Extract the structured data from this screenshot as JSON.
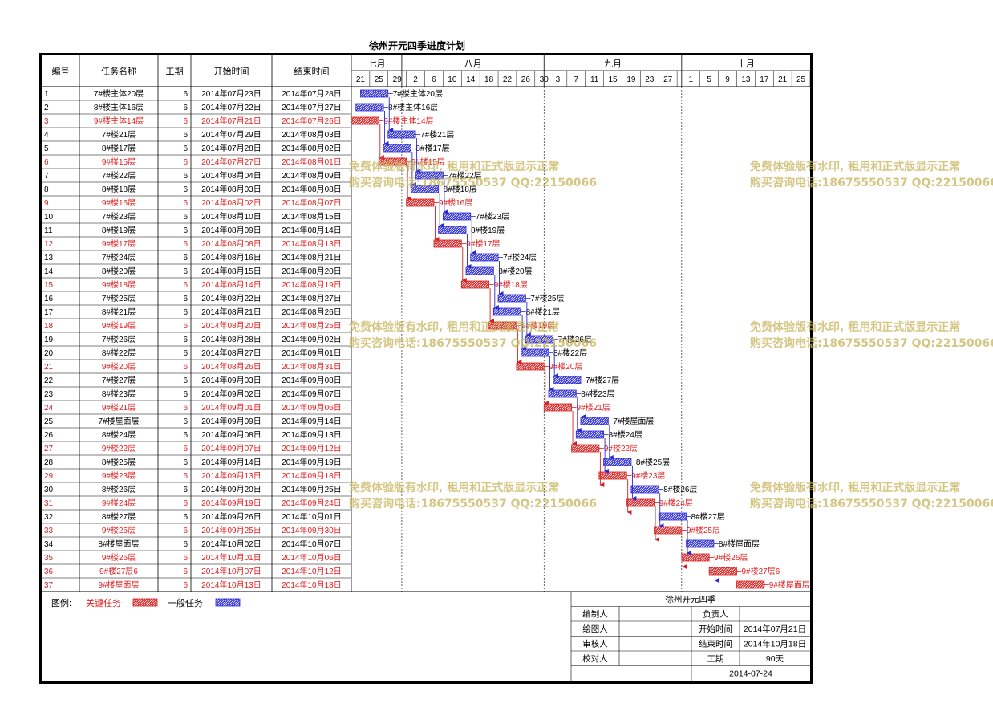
{
  "title": "徐州开元四季进度计划",
  "headers": {
    "id": "编号",
    "name": "任务名称",
    "dur": "工期",
    "start": "开始时间",
    "end": "结束时间"
  },
  "months": [
    {
      "label": "七月",
      "ticks": [
        "21",
        "25",
        "29"
      ]
    },
    {
      "label": "八月",
      "ticks": [
        "2",
        "6",
        "10",
        "14",
        "18",
        "22",
        "26",
        "30"
      ]
    },
    {
      "label": "九月",
      "ticks": [
        "3",
        "7",
        "11",
        "15",
        "19",
        "23",
        "27"
      ]
    },
    {
      "label": "十月",
      "ticks": [
        "1",
        "5",
        "9",
        "13",
        "17",
        "21",
        "25"
      ]
    }
  ],
  "timeline": {
    "start": "2014-07-21",
    "end": "2014-10-29"
  },
  "colors": {
    "critical": "#d32020",
    "normal": "#2a2ad0",
    "critical_text": "#e02020",
    "watermark": "#c8b45a"
  },
  "tasks": [
    {
      "id": "1",
      "name": "7#楼主体20层",
      "dur": "6",
      "start": "2014年07月23日",
      "end": "2014年07月28日",
      "critical": false
    },
    {
      "id": "2",
      "name": "8#楼主体16层",
      "dur": "6",
      "start": "2014年07月22日",
      "end": "2014年07月27日",
      "critical": false
    },
    {
      "id": "3",
      "name": "9#楼主体14层",
      "dur": "6",
      "start": "2014年07月21日",
      "end": "2014年07月26日",
      "critical": true
    },
    {
      "id": "4",
      "name": "7#楼21层",
      "dur": "6",
      "start": "2014年07月29日",
      "end": "2014年08月03日",
      "critical": false
    },
    {
      "id": "5",
      "name": "8#楼17层",
      "dur": "6",
      "start": "2014年07月28日",
      "end": "2014年08月02日",
      "critical": false
    },
    {
      "id": "6",
      "name": "9#楼15层",
      "dur": "6",
      "start": "2014年07月27日",
      "end": "2014年08月01日",
      "critical": true
    },
    {
      "id": "7",
      "name": "7#楼22层",
      "dur": "6",
      "start": "2014年08月04日",
      "end": "2014年08月09日",
      "critical": false
    },
    {
      "id": "8",
      "name": "8#楼18层",
      "dur": "6",
      "start": "2014年08月03日",
      "end": "2014年08月08日",
      "critical": false
    },
    {
      "id": "9",
      "name": "9#楼16层",
      "dur": "6",
      "start": "2014年08月02日",
      "end": "2014年08月07日",
      "critical": true
    },
    {
      "id": "10",
      "name": "7#楼23层",
      "dur": "6",
      "start": "2014年08月10日",
      "end": "2014年08月15日",
      "critical": false
    },
    {
      "id": "11",
      "name": "8#楼19层",
      "dur": "6",
      "start": "2014年08月09日",
      "end": "2014年08月14日",
      "critical": false
    },
    {
      "id": "12",
      "name": "9#楼17层",
      "dur": "6",
      "start": "2014年08月08日",
      "end": "2014年08月13日",
      "critical": true
    },
    {
      "id": "13",
      "name": "7#楼24层",
      "dur": "6",
      "start": "2014年08月16日",
      "end": "2014年08月21日",
      "critical": false
    },
    {
      "id": "14",
      "name": "8#楼20层",
      "dur": "6",
      "start": "2014年08月15日",
      "end": "2014年08月20日",
      "critical": false
    },
    {
      "id": "15",
      "name": "9#楼18层",
      "dur": "6",
      "start": "2014年08月14日",
      "end": "2014年08月19日",
      "critical": true
    },
    {
      "id": "16",
      "name": "7#楼25层",
      "dur": "6",
      "start": "2014年08月22日",
      "end": "2014年08月27日",
      "critical": false
    },
    {
      "id": "17",
      "name": "8#楼21层",
      "dur": "6",
      "start": "2014年08月21日",
      "end": "2014年08月26日",
      "critical": false
    },
    {
      "id": "18",
      "name": "9#楼19层",
      "dur": "6",
      "start": "2014年08月20日",
      "end": "2014年08月25日",
      "critical": true
    },
    {
      "id": "19",
      "name": "7#楼26层",
      "dur": "6",
      "start": "2014年08月28日",
      "end": "2014年09月02日",
      "critical": false
    },
    {
      "id": "20",
      "name": "8#楼22层",
      "dur": "6",
      "start": "2014年08月27日",
      "end": "2014年09月01日",
      "critical": false
    },
    {
      "id": "21",
      "name": "9#楼20层",
      "dur": "6",
      "start": "2014年08月26日",
      "end": "2014年08月31日",
      "critical": true
    },
    {
      "id": "22",
      "name": "7#楼27层",
      "dur": "6",
      "start": "2014年09月03日",
      "end": "2014年09月08日",
      "critical": false
    },
    {
      "id": "23",
      "name": "8#楼23层",
      "dur": "6",
      "start": "2014年09月02日",
      "end": "2014年09月07日",
      "critical": false
    },
    {
      "id": "24",
      "name": "9#楼21层",
      "dur": "6",
      "start": "2014年09月01日",
      "end": "2014年09月06日",
      "critical": true
    },
    {
      "id": "25",
      "name": "7#楼屋面层",
      "dur": "6",
      "start": "2014年09月09日",
      "end": "2014年09月14日",
      "critical": false
    },
    {
      "id": "26",
      "name": "8#楼24层",
      "dur": "6",
      "start": "2014年09月08日",
      "end": "2014年09月13日",
      "critical": false
    },
    {
      "id": "27",
      "name": "9#楼22层",
      "dur": "6",
      "start": "2014年09月07日",
      "end": "2014年09月12日",
      "critical": true
    },
    {
      "id": "28",
      "name": "8#楼25层",
      "dur": "6",
      "start": "2014年09月14日",
      "end": "2014年09月19日",
      "critical": false
    },
    {
      "id": "29",
      "name": "9#楼23层",
      "dur": "6",
      "start": "2014年09月13日",
      "end": "2014年09月18日",
      "critical": true
    },
    {
      "id": "30",
      "name": "8#楼26层",
      "dur": "6",
      "start": "2014年09月20日",
      "end": "2014年09月25日",
      "critical": false
    },
    {
      "id": "31",
      "name": "9#楼24层",
      "dur": "6",
      "start": "2014年09月19日",
      "end": "2014年09月24日",
      "critical": true
    },
    {
      "id": "32",
      "name": "8#楼27层",
      "dur": "6",
      "start": "2014年09月26日",
      "end": "2014年10月01日",
      "critical": false
    },
    {
      "id": "33",
      "name": "9#楼25层",
      "dur": "6",
      "start": "2014年09月25日",
      "end": "2014年09月30日",
      "critical": true
    },
    {
      "id": "34",
      "name": "8#楼屋面层",
      "dur": "6",
      "start": "2014年10月02日",
      "end": "2014年10月07日",
      "critical": false
    },
    {
      "id": "35",
      "name": "9#楼26层",
      "dur": "6",
      "start": "2014年10月01日",
      "end": "2014年10月06日",
      "critical": true
    },
    {
      "id": "36",
      "name": "9#楼27层6",
      "dur": "6",
      "start": "2014年10月07日",
      "end": "2014年10月12日",
      "critical": true
    },
    {
      "id": "37",
      "name": "9#楼屋面层",
      "dur": "6",
      "start": "2014年10月13日",
      "end": "2014年10月18日",
      "critical": true
    }
  ],
  "legend": {
    "label": "图例:",
    "critical": "关键任务",
    "normal": "一般任务"
  },
  "info": {
    "project": "徐州开元四季",
    "editor_label": "编制人",
    "editor": "",
    "drawer_label": "绘图人",
    "drawer": "",
    "reviewer_label": "审核人",
    "reviewer": "",
    "checker_label": "校对人",
    "checker": "",
    "owner_label": "负责人",
    "owner": "",
    "start_label": "开始时间",
    "start_value": "2014年07月21日",
    "end_label": "结束时间",
    "end_value": "2014年10月18日",
    "dur_label": "工期",
    "dur_value": "90天",
    "date": "2014-07-24"
  },
  "watermark": {
    "line1": "免费体验版有水印, 租用和正式版显示正常",
    "line2": "购买咨询电话:18675550537 QQ:22150066"
  }
}
